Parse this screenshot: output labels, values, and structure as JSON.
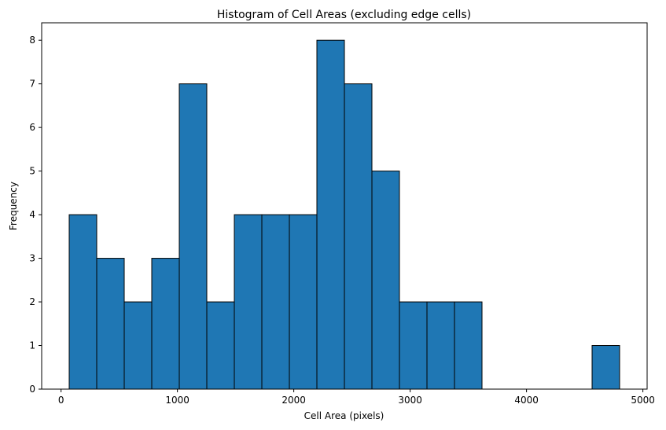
{
  "chart_data": {
    "type": "bar",
    "subtype": "histogram",
    "title": "Histogram of Cell Areas (excluding edge cells)",
    "xlabel": "Cell Area (pixels)",
    "ylabel": "Frequency",
    "bin_start": 70,
    "bin_width": 236.5,
    "bins": [
      {
        "x0": 70,
        "x1": 306.5,
        "count": 4
      },
      {
        "x0": 306.5,
        "x1": 543,
        "count": 3
      },
      {
        "x0": 543,
        "x1": 779.5,
        "count": 2
      },
      {
        "x0": 779.5,
        "x1": 1016,
        "count": 3
      },
      {
        "x0": 1016,
        "x1": 1252.5,
        "count": 7
      },
      {
        "x0": 1252.5,
        "x1": 1489,
        "count": 2
      },
      {
        "x0": 1489,
        "x1": 1725.5,
        "count": 4
      },
      {
        "x0": 1725.5,
        "x1": 1962,
        "count": 4
      },
      {
        "x0": 1962,
        "x1": 2198.5,
        "count": 4
      },
      {
        "x0": 2198.5,
        "x1": 2435,
        "count": 8
      },
      {
        "x0": 2435,
        "x1": 2671.5,
        "count": 7
      },
      {
        "x0": 2671.5,
        "x1": 2908,
        "count": 5
      },
      {
        "x0": 2908,
        "x1": 3144.5,
        "count": 2
      },
      {
        "x0": 3144.5,
        "x1": 3381,
        "count": 2
      },
      {
        "x0": 3381,
        "x1": 3617.5,
        "count": 2
      },
      {
        "x0": 3617.5,
        "x1": 3854,
        "count": 0
      },
      {
        "x0": 3854,
        "x1": 4090.5,
        "count": 0
      },
      {
        "x0": 4090.5,
        "x1": 4327,
        "count": 0
      },
      {
        "x0": 4327,
        "x1": 4563.5,
        "count": 0
      },
      {
        "x0": 4563.5,
        "x1": 4800,
        "count": 1
      }
    ],
    "xlim": [
      -166.5,
      5036.5
    ],
    "ylim": [
      0,
      8.4
    ],
    "xticks": [
      0,
      1000,
      2000,
      3000,
      4000,
      5000
    ],
    "yticks": [
      0,
      1,
      2,
      3,
      4,
      5,
      6,
      7,
      8
    ],
    "bar_color": "#1f77b4",
    "edge_color": "#000000",
    "grid": false,
    "legend": "none"
  }
}
